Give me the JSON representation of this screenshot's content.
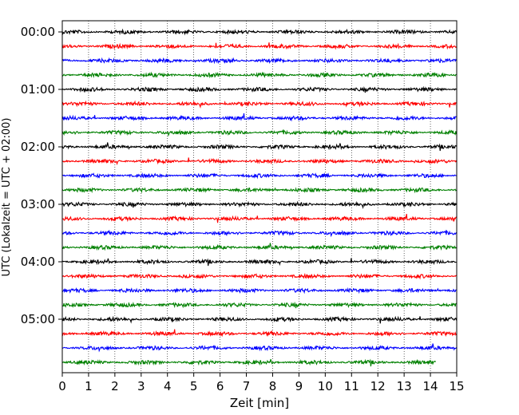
{
  "chart_data": {
    "type": "line",
    "title": "",
    "xlabel": "Zeit  [min]",
    "ylabel": "UTC (Lokalzeit = UTC + 02:00)",
    "xlim": [
      0,
      15
    ],
    "xticks": [
      "0",
      "1",
      "2",
      "3",
      "4",
      "5",
      "6",
      "7",
      "8",
      "9",
      "10",
      "11",
      "12",
      "13",
      "14",
      "15"
    ],
    "yticks": [
      "00:00",
      "01:00",
      "02:00",
      "03:00",
      "04:00",
      "05:00"
    ],
    "grid": "vertical dotted",
    "legend": "none",
    "colors": [
      "#000000",
      "#ff0000",
      "#0000ff",
      "#008000"
    ],
    "trace_start_minutes": [
      "00:00",
      "00:15",
      "00:30",
      "00:45",
      "01:00",
      "01:15",
      "01:30",
      "01:45",
      "02:00",
      "02:15",
      "02:30",
      "02:45",
      "03:00",
      "03:15",
      "03:30",
      "03:45",
      "04:00",
      "04:15",
      "04:30",
      "04:45",
      "05:00",
      "05:15",
      "05:30",
      "05:45"
    ],
    "trace_length_min": [
      15,
      15,
      15,
      15,
      15,
      15,
      15,
      15,
      15,
      15,
      15,
      15,
      15,
      15,
      15,
      15,
      15,
      15,
      15,
      15,
      15,
      15,
      15,
      14.2
    ],
    "traces_per_hour": 4
  }
}
